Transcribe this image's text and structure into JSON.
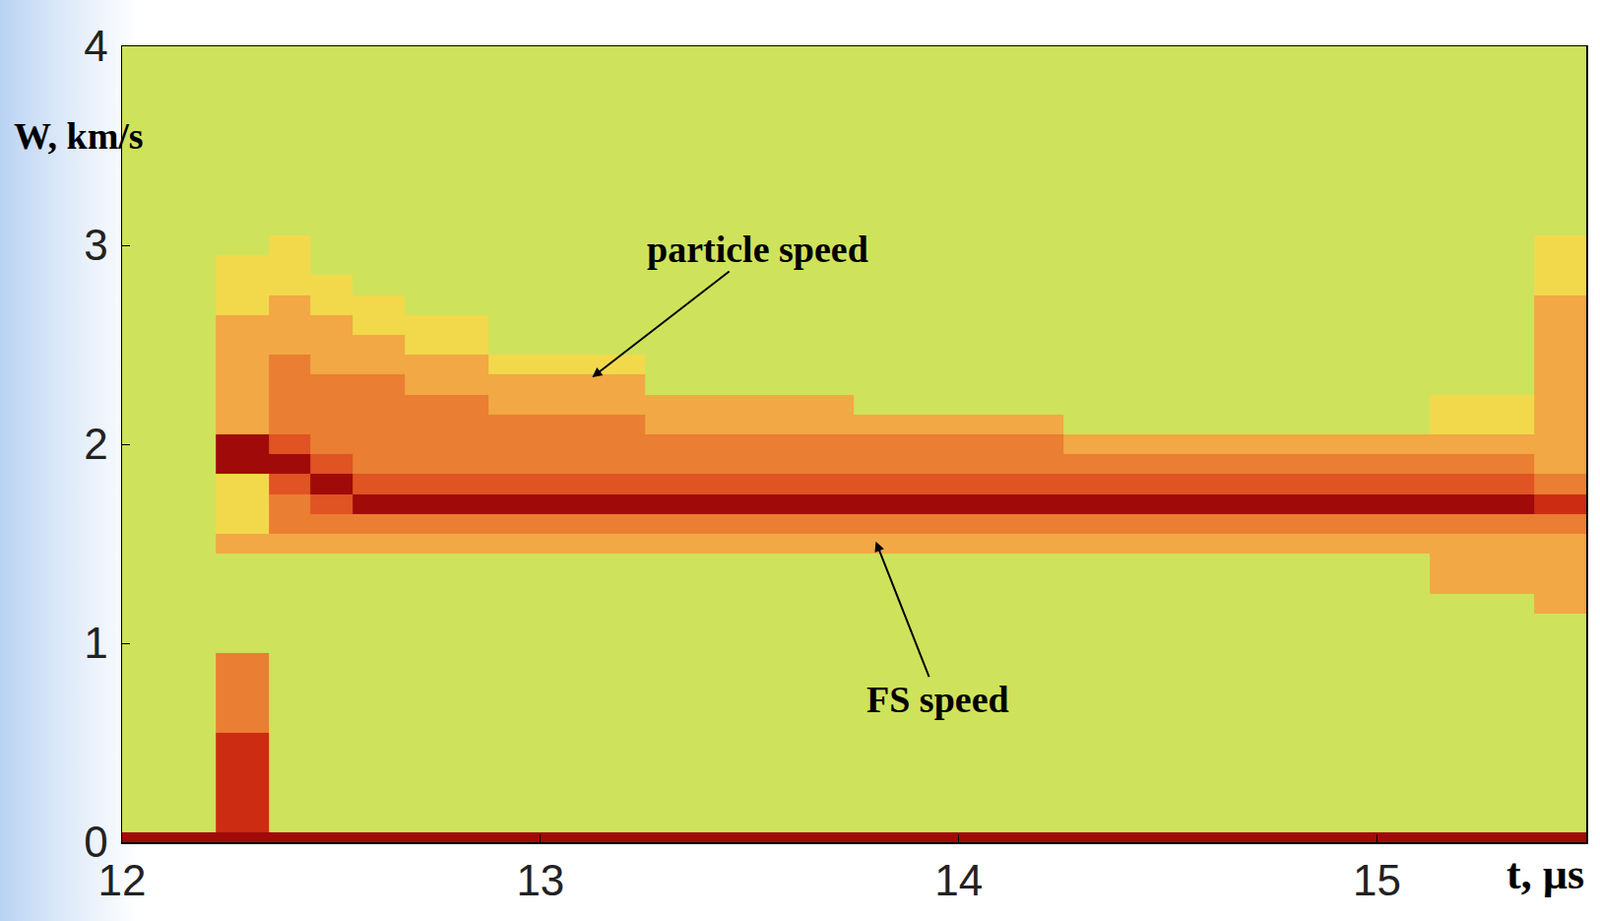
{
  "chart_data": {
    "type": "heatmap",
    "xlabel": "t, µs",
    "ylabel": "W, km/s",
    "xlim": [
      12,
      15.5
    ],
    "xticks": [
      12,
      13,
      14,
      15
    ],
    "ylim": [
      0,
      4
    ],
    "yticks": [
      0,
      1,
      2,
      3,
      4
    ],
    "grid": true,
    "x": [
      12.0,
      12.15,
      12.3,
      12.4,
      12.5,
      12.6,
      12.75,
      13.0,
      13.5,
      14.0,
      14.5,
      15.0,
      15.25,
      15.5
    ],
    "y": [
      0.0,
      0.1,
      0.2,
      0.3,
      0.4,
      0.5,
      0.6,
      0.7,
      0.8,
      0.9,
      1.0,
      1.1,
      1.2,
      1.3,
      1.4,
      1.5,
      1.6,
      1.7,
      1.8,
      1.9,
      2.0,
      2.1,
      2.2,
      2.3,
      2.4,
      2.5,
      2.6,
      2.7,
      2.8,
      2.9,
      3.0,
      3.1,
      3.2,
      3.3,
      3.4,
      3.5,
      3.6,
      3.7,
      3.8,
      3.9,
      4.0
    ],
    "zlim": [
      0,
      10
    ],
    "z": [
      [
        9,
        9,
        9,
        9,
        9,
        9,
        9,
        9,
        9,
        9,
        9,
        9,
        9,
        9
      ],
      [
        2,
        2,
        7,
        2,
        2,
        2,
        2,
        2,
        2,
        2,
        2,
        2,
        2,
        2
      ],
      [
        2,
        2,
        7,
        2,
        2,
        2,
        2,
        2,
        2,
        2,
        2,
        2,
        2,
        2
      ],
      [
        2,
        2,
        7,
        2,
        2,
        2,
        2,
        2,
        2,
        2,
        2,
        2,
        2,
        2
      ],
      [
        2,
        2,
        7,
        2,
        2,
        2,
        2,
        2,
        2,
        2,
        2,
        2,
        2,
        2
      ],
      [
        2,
        2,
        7,
        2,
        2,
        2,
        2,
        2,
        2,
        2,
        2,
        2,
        2,
        2
      ],
      [
        2,
        2,
        5,
        2,
        2,
        2,
        2,
        2,
        2,
        2,
        2,
        2,
        2,
        2
      ],
      [
        2,
        2,
        5,
        2,
        2,
        2,
        2,
        2,
        2,
        2,
        2,
        2,
        2,
        2
      ],
      [
        2,
        2,
        5,
        2,
        2,
        2,
        2,
        2,
        2,
        2,
        2,
        2,
        2,
        2
      ],
      [
        2,
        2,
        5,
        2,
        2,
        2,
        2,
        2,
        2,
        2,
        2,
        2,
        2,
        2
      ],
      [
        2,
        2,
        2,
        2,
        2,
        2,
        2,
        2,
        2,
        2,
        2,
        2,
        2,
        2
      ],
      [
        2,
        2,
        2,
        2,
        2,
        2,
        2,
        2,
        2,
        2,
        2,
        2,
        2,
        2
      ],
      [
        2,
        2,
        2,
        2,
        2,
        2,
        2,
        2,
        2,
        2,
        2,
        2,
        2,
        4
      ],
      [
        2,
        2,
        2,
        2,
        2,
        2,
        2,
        2,
        2,
        2,
        2,
        2,
        4,
        4
      ],
      [
        2,
        2,
        2,
        2,
        2,
        2,
        2,
        2,
        2,
        2,
        2,
        2,
        4,
        4
      ],
      [
        2,
        2,
        4,
        4,
        4,
        4,
        4,
        4,
        4,
        4,
        4,
        4,
        4,
        4
      ],
      [
        2,
        2,
        3,
        5,
        5,
        5,
        5,
        5,
        5,
        5,
        5,
        5,
        5,
        5
      ],
      [
        2,
        2,
        3,
        5,
        6,
        9,
        9,
        9,
        9,
        9,
        9,
        9,
        9,
        7
      ],
      [
        2,
        2,
        3,
        6,
        9,
        6,
        6,
        6,
        6,
        6,
        6,
        6,
        6,
        5
      ],
      [
        2,
        2,
        9,
        9,
        6,
        5,
        5,
        5,
        5,
        5,
        5,
        5,
        5,
        4
      ],
      [
        2,
        2,
        9,
        6,
        5,
        5,
        5,
        5,
        5,
        5,
        4,
        4,
        4,
        4
      ],
      [
        2,
        2,
        4,
        5,
        5,
        5,
        5,
        5,
        4,
        4,
        2,
        2,
        3,
        4
      ],
      [
        2,
        2,
        4,
        5,
        5,
        5,
        5,
        4,
        4,
        2,
        2,
        2,
        3,
        4
      ],
      [
        2,
        2,
        4,
        5,
        5,
        5,
        4,
        4,
        2,
        2,
        2,
        2,
        2,
        4
      ],
      [
        2,
        2,
        4,
        5,
        4,
        4,
        4,
        3,
        2,
        2,
        2,
        2,
        2,
        4
      ],
      [
        2,
        2,
        4,
        4,
        4,
        4,
        3,
        2,
        2,
        2,
        2,
        2,
        2,
        4
      ],
      [
        2,
        2,
        4,
        4,
        4,
        3,
        3,
        2,
        2,
        2,
        2,
        2,
        2,
        4
      ],
      [
        2,
        2,
        3,
        4,
        3,
        3,
        2,
        2,
        2,
        2,
        2,
        2,
        2,
        4
      ],
      [
        2,
        2,
        3,
        3,
        3,
        2,
        2,
        2,
        2,
        2,
        2,
        2,
        2,
        3
      ],
      [
        2,
        2,
        3,
        3,
        2,
        2,
        2,
        2,
        2,
        2,
        2,
        2,
        2,
        3
      ],
      [
        2,
        2,
        2,
        3,
        2,
        2,
        2,
        2,
        2,
        2,
        2,
        2,
        2,
        3
      ],
      [
        2,
        2,
        2,
        2,
        2,
        2,
        2,
        2,
        2,
        2,
        2,
        2,
        2,
        2
      ],
      [
        2,
        2,
        2,
        2,
        2,
        2,
        2,
        2,
        2,
        2,
        2,
        2,
        2,
        2
      ],
      [
        2,
        2,
        2,
        2,
        2,
        2,
        2,
        2,
        2,
        2,
        2,
        2,
        2,
        2
      ],
      [
        2,
        2,
        2,
        2,
        2,
        2,
        2,
        2,
        2,
        2,
        2,
        2,
        2,
        2
      ],
      [
        2,
        2,
        2,
        2,
        2,
        2,
        2,
        2,
        2,
        2,
        2,
        2,
        2,
        2
      ],
      [
        2,
        2,
        2,
        2,
        2,
        2,
        2,
        2,
        2,
        2,
        2,
        2,
        2,
        2
      ],
      [
        2,
        2,
        2,
        2,
        2,
        2,
        2,
        2,
        2,
        2,
        2,
        2,
        2,
        2
      ],
      [
        2,
        2,
        2,
        2,
        2,
        2,
        2,
        2,
        2,
        2,
        2,
        2,
        2,
        2
      ],
      [
        2,
        2,
        2,
        2,
        2,
        2,
        2,
        2,
        2,
        2,
        2,
        2,
        2,
        2
      ],
      [
        2,
        2,
        2,
        2,
        2,
        2,
        2,
        2,
        2,
        2,
        2,
        2,
        2,
        2
      ]
    ],
    "annotations": [
      {
        "text": "particle speed",
        "x": 13.12,
        "y": 2.33,
        "text_x": 13.52,
        "text_y": 2.98
      },
      {
        "text": "FS speed",
        "x": 13.8,
        "y": 1.52,
        "text_x": 13.95,
        "text_y": 0.72
      }
    ]
  }
}
